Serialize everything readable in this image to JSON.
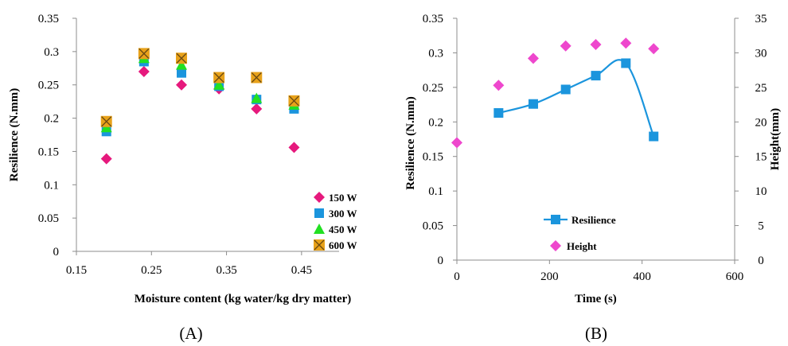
{
  "chart_data": [
    {
      "type": "scatter",
      "panel_label": "(A)",
      "xlabel": "Moisture content (kg water/kg dry matter)",
      "ylabel": "Resilience (N.mm)",
      "xlim": [
        0.15,
        0.5
      ],
      "ylim": [
        0,
        0.35
      ],
      "x_ticks": [
        "0.15",
        "0.25",
        "0.35",
        "0.45"
      ],
      "y_ticks": [
        "0",
        "0.05",
        "0.1",
        "0.15",
        "0.2",
        "0.25",
        "0.3",
        "0.35"
      ],
      "grid": false,
      "legend_position": "bottom-right",
      "x": [
        0.19,
        0.24,
        0.29,
        0.34,
        0.39,
        0.44
      ],
      "series": [
        {
          "name": "150 W",
          "marker": "diamond",
          "color": "#e6197d",
          "values": [
            0.139,
            0.27,
            0.25,
            0.244,
            0.214,
            0.156
          ]
        },
        {
          "name": "300 W",
          "marker": "square",
          "color": "#1b95dd",
          "values": [
            0.18,
            0.285,
            0.268,
            0.248,
            0.228,
            0.214
          ]
        },
        {
          "name": "450 W",
          "marker": "triangle",
          "color": "#22e022",
          "values": [
            0.186,
            0.29,
            0.28,
            0.25,
            0.23,
            0.22
          ]
        },
        {
          "name": "600 W",
          "marker": "x-square",
          "color": "#e8a21a",
          "values": [
            0.195,
            0.297,
            0.29,
            0.261,
            0.261,
            0.226
          ]
        }
      ]
    },
    {
      "type": "line",
      "panel_label": "(B)",
      "xlabel": "Time (s)",
      "ylabel": "Resilience (N.mm)",
      "y2label": "Height(mm)",
      "xlim": [
        0,
        600
      ],
      "ylim": [
        0,
        0.35
      ],
      "y2lim": [
        0,
        35
      ],
      "x_ticks": [
        "0",
        "200",
        "400",
        "600"
      ],
      "y_ticks": [
        "0",
        "0.05",
        "0.1",
        "0.15",
        "0.2",
        "0.25",
        "0.3",
        "0.35"
      ],
      "y2_ticks": [
        "0",
        "5",
        "10",
        "15",
        "20",
        "25",
        "30",
        "35"
      ],
      "grid": false,
      "legend_position": "bottom-center",
      "series": [
        {
          "name": "Resilience",
          "axis": "left",
          "marker": "square",
          "color": "#1b95dd",
          "line": true,
          "x": [
            90,
            165,
            235,
            300,
            365,
            425
          ],
          "values": [
            0.213,
            0.226,
            0.247,
            0.267,
            0.285,
            0.179
          ]
        },
        {
          "name": "Height",
          "axis": "right",
          "marker": "diamond",
          "color": "#ee47cd",
          "line": false,
          "x": [
            0,
            90,
            165,
            235,
            300,
            365,
            425
          ],
          "values": [
            17,
            25.3,
            29.2,
            31.0,
            31.2,
            31.4,
            30.6
          ]
        }
      ]
    }
  ]
}
